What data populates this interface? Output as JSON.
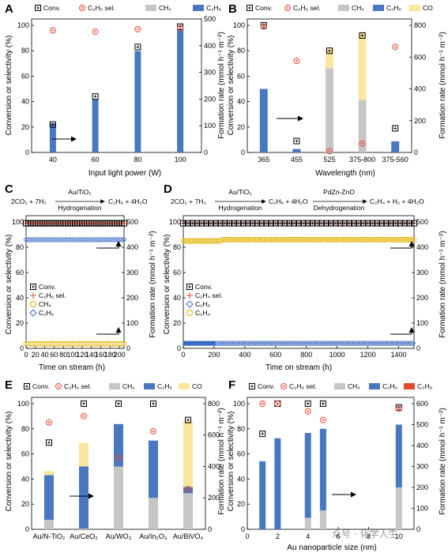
{
  "colors": {
    "ch4": "#c6c6c6",
    "c2h6": "#4a78c0",
    "co": "#fbe6a0",
    "c3h8": "#e8472a",
    "sel": "#e74c3c",
    "c2h4": "#e3b300",
    "c2h6_mark": "#3a6bc4"
  },
  "watermark": "众号 · 化学人生",
  "panels": {
    "A": {
      "label": "A",
      "xlabel": "Input light power (W)",
      "ylabel": "Conversion or selectivity (%)",
      "y2label": "Formation rate (mmol h⁻¹ m⁻²)",
      "legend": [
        "Conv.",
        "C₂H₆ sel.",
        "CH₄",
        "C₂H₆"
      ],
      "yticks": [
        "0",
        "20",
        "40",
        "60",
        "80",
        "100"
      ],
      "y2ticks": [
        "0",
        "100",
        "200",
        "300",
        "400",
        "500"
      ]
    },
    "B": {
      "label": "B",
      "xlabel": "Wavelength (nm)",
      "ylabel": "Conversion or selectivity (%)",
      "y2label": "Formation rate (mmol h⁻¹ m⁻²)",
      "legend": [
        "Conv.",
        "C₂H₆ sel.",
        "CH₄",
        "C₂H₆",
        "CO"
      ],
      "yticks": [
        "0",
        "20",
        "40",
        "60",
        "80",
        "100"
      ],
      "y2ticks": [
        "0",
        "200",
        "400",
        "600",
        "800"
      ]
    },
    "C": {
      "label": "C",
      "scheme": {
        "left": "2CO₂ + 7H₂",
        "top": "Au/TiO₂",
        "bottom": "Hydrogenation",
        "right": "C₂H₆ + 4H₂O"
      },
      "xlabel": "Time on stream (h)",
      "ylabel": "Conversion or selectivity (%)",
      "y2label": "Formation rate (mmol h⁻¹ m⁻²)",
      "legend": [
        "Conv.",
        "C₂H₆ sel.",
        "CH₄",
        "C₂H₆"
      ],
      "xticks": [
        "0",
        "20",
        "40",
        "60",
        "80",
        "100",
        "120",
        "140",
        "160",
        "180",
        "200"
      ],
      "yticks": [
        "0",
        "20",
        "40",
        "60",
        "80",
        "100"
      ],
      "y2ticks": [
        "0",
        "100",
        "200",
        "300",
        "400",
        "500"
      ]
    },
    "D": {
      "label": "D",
      "scheme": {
        "left": "2CO₂ + 7H₂",
        "top1": "Au/TiO₂",
        "bottom1": "Hydrogenation",
        "mid": "C₂H₆ + 4H₂O",
        "top2": "PdZn-ZnO",
        "bottom2": "Dehydrogenation",
        "right": "C₂H₄ + H₂ + 4H₂O"
      },
      "xlabel": "Time on stream (h)",
      "ylabel": "Conversion or selectivity (%)",
      "y2label": "Formation rate (mmol h⁻¹ m⁻²)",
      "legend": [
        "Conv.",
        "C₂H₄ sel.",
        "C₂H₆",
        "C₂H₄"
      ],
      "xticks": [
        "0",
        "200",
        "400",
        "600",
        "800",
        "1000",
        "1200",
        "1400"
      ],
      "yticks": [
        "0",
        "20",
        "40",
        "60",
        "80",
        "100"
      ],
      "y2ticks": [
        "0",
        "100",
        "200",
        "300",
        "400",
        "500"
      ]
    },
    "E": {
      "label": "E",
      "xlabel": "",
      "ylabel": "Conversion or selectivity (%)",
      "y2label": "Formation rate (mmol h⁻¹ m⁻²)",
      "legend": [
        "Conv.",
        "C₂H₆ sel.",
        "CH₄",
        "C₂H₆",
        "CO"
      ],
      "yticks": [
        "0",
        "20",
        "40",
        "60",
        "80",
        "100"
      ],
      "y2ticks": [
        "0",
        "200",
        "400",
        "600",
        "800"
      ]
    },
    "F": {
      "label": "F",
      "xlabel": "Au nanoparticle size (nm)",
      "ylabel": "Conversion or selectivity (%)",
      "y2label": "Formation rate (mmol h⁻¹ m⁻²)",
      "legend": [
        "Conv.",
        "C₂H₆ sel.",
        "CH₄",
        "C₂H₆",
        "C₃H₈"
      ],
      "xticks": [
        "0",
        "2",
        "4",
        "6",
        "8",
        "10"
      ],
      "yticks": [
        "0",
        "20",
        "40",
        "60",
        "80",
        "100"
      ],
      "y2ticks": [
        "0",
        "100",
        "200",
        "300",
        "400",
        "500",
        "600"
      ]
    }
  },
  "chart_data": [
    {
      "type": "bar",
      "panel": "A",
      "categories": [
        "40",
        "60",
        "80",
        "100"
      ],
      "xlabel": "Input light power (W)",
      "ylabel": "Conversion or selectivity (%)",
      "ylim": [
        0,
        105
      ],
      "y2label": "Formation rate (mmol h⁻¹ m⁻²)",
      "y2lim": [
        0,
        500
      ],
      "series": [
        {
          "name": "C₂H₆",
          "axis": "right",
          "values": [
            110,
            200,
            380,
            460
          ]
        },
        {
          "name": "Conv.",
          "axis": "left",
          "values": [
            22,
            44,
            83,
            99
          ]
        },
        {
          "name": "C₂H₆ sel.",
          "axis": "left",
          "values": [
            96,
            95,
            97,
            98
          ]
        }
      ]
    },
    {
      "type": "bar",
      "panel": "B",
      "categories": [
        "365",
        "455",
        "525",
        "375-800",
        "375-560"
      ],
      "xlabel": "Wavelength (nm)",
      "ylabel": "Conversion or selectivity (%)",
      "ylim": [
        0,
        105
      ],
      "y2label": "Formation rate (mmol h⁻¹ m⁻²)",
      "y2lim": [
        0,
        840
      ],
      "series": [
        {
          "name": "CH₄",
          "axis": "right",
          "values": [
            0,
            0,
            530,
            330,
            0
          ]
        },
        {
          "name": "C₂H₆",
          "axis": "right",
          "values": [
            400,
            22,
            0,
            0,
            70
          ]
        },
        {
          "name": "CO",
          "axis": "right",
          "values": [
            0,
            0,
            120,
            420,
            0
          ]
        },
        {
          "name": "Conv.",
          "axis": "left",
          "values": [
            100,
            9,
            80,
            92,
            19
          ]
        },
        {
          "name": "C₂H₆ sel.",
          "axis": "left",
          "values": [
            99,
            72,
            1,
            7,
            83
          ]
        }
      ]
    },
    {
      "type": "line",
      "panel": "C",
      "x": [
        0,
        20,
        40,
        60,
        80,
        100,
        120,
        140,
        160,
        180,
        200,
        210
      ],
      "xlabel": "Time on stream (h)",
      "ylabel": "Conversion or selectivity (%)",
      "ylim": [
        0,
        105
      ],
      "y2label": "Formation rate (mmol h⁻¹ m⁻²)",
      "y2lim": [
        0,
        525
      ],
      "series": [
        {
          "name": "Conv.",
          "axis": "left",
          "values": [
            99,
            99,
            99,
            99,
            99,
            99,
            99,
            99,
            99,
            99,
            99,
            99
          ]
        },
        {
          "name": "C₂H₆ sel.",
          "axis": "left",
          "values": [
            99,
            99,
            99,
            99,
            99,
            99,
            99,
            99,
            99,
            99,
            99,
            99
          ]
        },
        {
          "name": "CH₄",
          "axis": "right",
          "values": [
            18,
            18,
            18,
            18,
            18,
            18,
            18,
            18,
            18,
            18,
            18,
            18
          ]
        },
        {
          "name": "C₂H₆",
          "axis": "right",
          "values": [
            430,
            430,
            430,
            430,
            430,
            430,
            430,
            430,
            430,
            430,
            430,
            430
          ]
        }
      ]
    },
    {
      "type": "line",
      "panel": "D",
      "x": [
        0,
        100,
        200,
        300,
        400,
        500,
        600,
        700,
        800,
        900,
        1000,
        1100,
        1200,
        1300,
        1400,
        1500
      ],
      "xlabel": "Time on stream (h)",
      "ylabel": "Conversion or selectivity (%)",
      "ylim": [
        0,
        105
      ],
      "y2label": "Formation rate (mmol h⁻¹ m⁻²)",
      "y2lim": [
        0,
        525
      ],
      "series": [
        {
          "name": "Conv.",
          "axis": "left",
          "values": [
            99,
            99,
            99,
            99,
            99,
            99,
            99,
            99,
            99,
            99,
            99,
            99,
            99,
            99,
            99,
            99
          ]
        },
        {
          "name": "C₂H₄ sel.",
          "axis": "left",
          "values": [
            99,
            99,
            99,
            99,
            99,
            99,
            99,
            99,
            99,
            99,
            99,
            99,
            99,
            99,
            99,
            99
          ]
        },
        {
          "name": "C₂H₆",
          "axis": "right",
          "values": [
            20,
            20,
            20,
            20,
            20,
            20,
            20,
            20,
            20,
            20,
            20,
            20,
            20,
            20,
            20,
            20
          ]
        },
        {
          "name": "C₂H₄",
          "axis": "right",
          "values": [
            425,
            425,
            430,
            430,
            430,
            430,
            430,
            430,
            430,
            430,
            430,
            430,
            430,
            430,
            430,
            430
          ]
        }
      ]
    },
    {
      "type": "bar",
      "panel": "E",
      "categories": [
        "Au/N-TiO₂",
        "Au/CeO₂",
        "Au/WO₃",
        "Au/In₂O₃",
        "Au/BiVO₄"
      ],
      "ylabel": "Conversion or selectivity (%)",
      "ylim": [
        0,
        105
      ],
      "y2label": "Formation rate (mmol h⁻¹ m⁻²)",
      "y2lim": [
        0,
        840
      ],
      "series": [
        {
          "name": "CH₄",
          "axis": "right",
          "values": [
            60,
            5,
            400,
            200,
            230
          ]
        },
        {
          "name": "C₂H₆",
          "axis": "right",
          "values": [
            285,
            395,
            270,
            365,
            40
          ]
        },
        {
          "name": "CO",
          "axis": "right",
          "values": [
            25,
            150,
            0,
            0,
            420
          ]
        },
        {
          "name": "Conv.",
          "axis": "left",
          "values": [
            69,
            100,
            100,
            100,
            87
          ]
        },
        {
          "name": "C₂H₆ sel.",
          "axis": "left",
          "values": [
            85,
            90,
            57,
            78,
            32
          ]
        }
      ]
    },
    {
      "type": "bar",
      "panel": "F",
      "categories": [
        "1",
        "2",
        "4",
        "5",
        "10"
      ],
      "xlabel": "Au nanoparticle size (nm)",
      "ylabel": "Conversion or selectivity (%)",
      "ylim": [
        0,
        105
      ],
      "y2label": "Formation rate (mmol h⁻¹ m⁻²)",
      "y2lim": [
        0,
        630
      ],
      "series": [
        {
          "name": "CH₄",
          "axis": "right",
          "values": [
            0,
            0,
            55,
            90,
            200
          ]
        },
        {
          "name": "C₂H₆",
          "axis": "right",
          "values": [
            325,
            435,
            405,
            390,
            300
          ]
        },
        {
          "name": "C₃H₈",
          "axis": "right",
          "values": [
            0,
            0,
            0,
            0,
            0
          ]
        },
        {
          "name": "Conv.",
          "axis": "left",
          "values": [
            76,
            100,
            100,
            100,
            97
          ]
        },
        {
          "name": "C₂H₆ sel.",
          "axis": "left",
          "values": [
            100,
            100,
            94,
            87,
            96
          ]
        }
      ]
    }
  ]
}
